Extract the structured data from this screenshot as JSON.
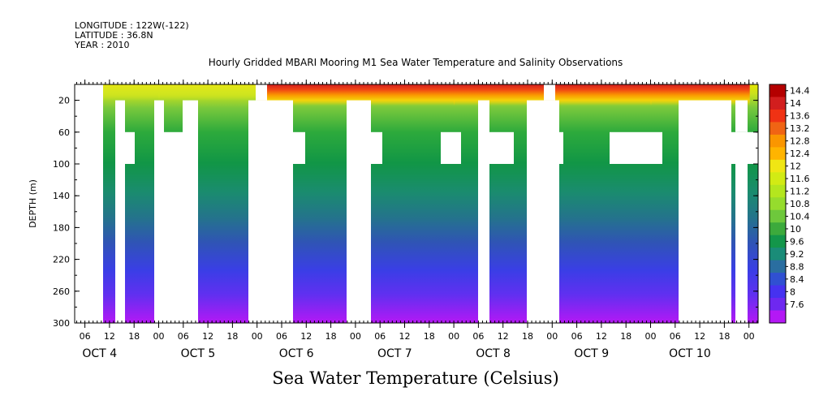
{
  "header": {
    "longitude": "LONGITUDE : 122W(-122)",
    "latitude": "LATITUDE : 36.8N",
    "year": "YEAR : 2010",
    "title": "Hourly Gridded MBARI Mooring M1 Sea Water Temperature and Salinity Observations"
  },
  "footer_title": "Sea Water Temperature (Celsius)",
  "chart_data": {
    "type": "heatmap",
    "title": "Hourly Gridded MBARI Mooring M1 Sea Water Temperature and Salinity Observations",
    "xlabel": "",
    "ylabel": "DEPTH (m)",
    "y_range": [
      300,
      0
    ],
    "y_ticks": [
      20,
      60,
      100,
      140,
      180,
      220,
      260,
      300
    ],
    "x_range_days": [
      "2010-10-03T18:00",
      "2010-10-10T14:00"
    ],
    "x_hour_ticks": [
      "06",
      "12",
      "18",
      "00",
      "06",
      "12",
      "18",
      "00",
      "06",
      "12",
      "18",
      "00",
      "06",
      "12",
      "18",
      "00",
      "06",
      "12",
      "18",
      "00",
      "06",
      "12",
      "18",
      "00",
      "06",
      "12",
      "18",
      "00"
    ],
    "x_day_labels": [
      "OCT 4",
      "OCT 5",
      "OCT 6",
      "OCT 7",
      "OCT 8",
      "OCT 9",
      "OCT 10"
    ],
    "colorbar": {
      "labels": [
        "14.4",
        "14",
        "13.6",
        "13.2",
        "12.8",
        "12.4",
        "12",
        "11.6",
        "11.2",
        "10.8",
        "10.4",
        "10",
        "9.6",
        "9.2",
        "8.8",
        "8.4",
        "8",
        "7.6"
      ],
      "range": [
        7.6,
        14.4
      ]
    },
    "surface_temperature_by_day": [
      {
        "day": "OCT 4",
        "surface": 11.4,
        "bottom": 7.8
      },
      {
        "day": "OCT 5",
        "surface": 11.6,
        "bottom": 7.7
      },
      {
        "day": "OCT 6",
        "surface": 13.9,
        "bottom": 8.0
      },
      {
        "day": "OCT 7",
        "surface": 13.8,
        "bottom": 8.0
      },
      {
        "day": "OCT 8",
        "surface": 13.6,
        "bottom": 8.0
      },
      {
        "day": "OCT 9",
        "surface": 13.8,
        "bottom": 8.2
      },
      {
        "day": "OCT 10",
        "surface": 13.9,
        "bottom": 8.3
      }
    ],
    "grid": false,
    "legend": "colorbar-right"
  }
}
